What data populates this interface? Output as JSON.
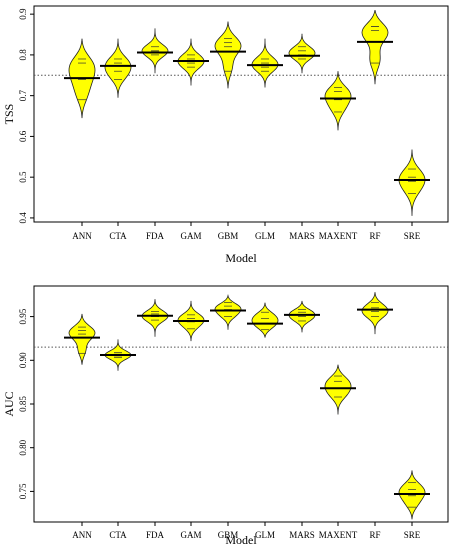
{
  "colors": {
    "violin_fill": "#ffff00",
    "violin_stroke": "#222222",
    "ref_line": "#555555"
  },
  "chart_data": [
    {
      "type": "violin",
      "xlabel": "Model",
      "ylabel": "TSS",
      "ylim": [
        0.39,
        0.92
      ],
      "yticks": [
        "0.4",
        "0.5",
        "0.6",
        "0.7",
        "0.8",
        "0.9"
      ],
      "reference_line": 0.75,
      "categories": [
        "ANN",
        "CTA",
        "FDA",
        "GAM",
        "GBM",
        "GLM",
        "MARS",
        "MAXENT",
        "RF",
        "SRE"
      ],
      "median": [
        0.743,
        0.773,
        0.806,
        0.785,
        0.808,
        0.775,
        0.798,
        0.693,
        0.832,
        0.493
      ],
      "min": [
        0.645,
        0.695,
        0.755,
        0.725,
        0.718,
        0.72,
        0.755,
        0.615,
        0.728,
        0.405
      ],
      "max": [
        0.84,
        0.84,
        0.865,
        0.84,
        0.882,
        0.84,
        0.852,
        0.76,
        0.91,
        0.568
      ],
      "sample_values": [
        [
          0.69,
          0.74,
          0.78,
          0.79
        ],
        [
          0.74,
          0.76,
          0.78,
          0.79
        ],
        [
          0.8,
          0.81,
          0.81,
          0.82
        ],
        [
          0.77,
          0.78,
          0.79,
          0.8
        ],
        [
          0.76,
          0.82,
          0.83,
          0.84
        ],
        [
          0.76,
          0.77,
          0.78,
          0.79
        ],
        [
          0.79,
          0.8,
          0.81,
          0.82
        ],
        [
          0.66,
          0.69,
          0.71,
          0.72
        ],
        [
          0.78,
          0.86,
          0.87,
          0.87
        ],
        [
          0.46,
          0.49,
          0.5,
          0.52
        ]
      ]
    },
    {
      "type": "violin",
      "xlabel": "Model",
      "ylabel": "AUC",
      "ylim": [
        0.715,
        0.985
      ],
      "yticks": [
        "0.75",
        "0.80",
        "0.85",
        "0.90",
        "0.95"
      ],
      "reference_line": 0.915,
      "categories": [
        "ANN",
        "CTA",
        "FDA",
        "GAM",
        "GBM",
        "GLM",
        "MARS",
        "MAXENT",
        "RF",
        "SRE"
      ],
      "median": [
        0.926,
        0.906,
        0.951,
        0.945,
        0.957,
        0.942,
        0.952,
        0.868,
        0.958,
        0.747
      ],
      "min": [
        0.895,
        0.888,
        0.927,
        0.922,
        0.935,
        0.926,
        0.932,
        0.838,
        0.93,
        0.718
      ],
      "max": [
        0.953,
        0.924,
        0.97,
        0.968,
        0.974,
        0.966,
        0.968,
        0.895,
        0.978,
        0.774
      ],
      "sample_values": [
        [
          0.908,
          0.93,
          0.934,
          0.938
        ],
        [
          0.903,
          0.905,
          0.907,
          0.909
        ],
        [
          0.946,
          0.95,
          0.953,
          0.956
        ],
        [
          0.936,
          0.944,
          0.948,
          0.952
        ],
        [
          0.95,
          0.958,
          0.962,
          0.966
        ],
        [
          0.935,
          0.942,
          0.948,
          0.955
        ],
        [
          0.945,
          0.95,
          0.955,
          0.958
        ],
        [
          0.858,
          0.868,
          0.876,
          0.882
        ],
        [
          0.95,
          0.956,
          0.96,
          0.966
        ],
        [
          0.732,
          0.745,
          0.752,
          0.76
        ]
      ]
    }
  ]
}
